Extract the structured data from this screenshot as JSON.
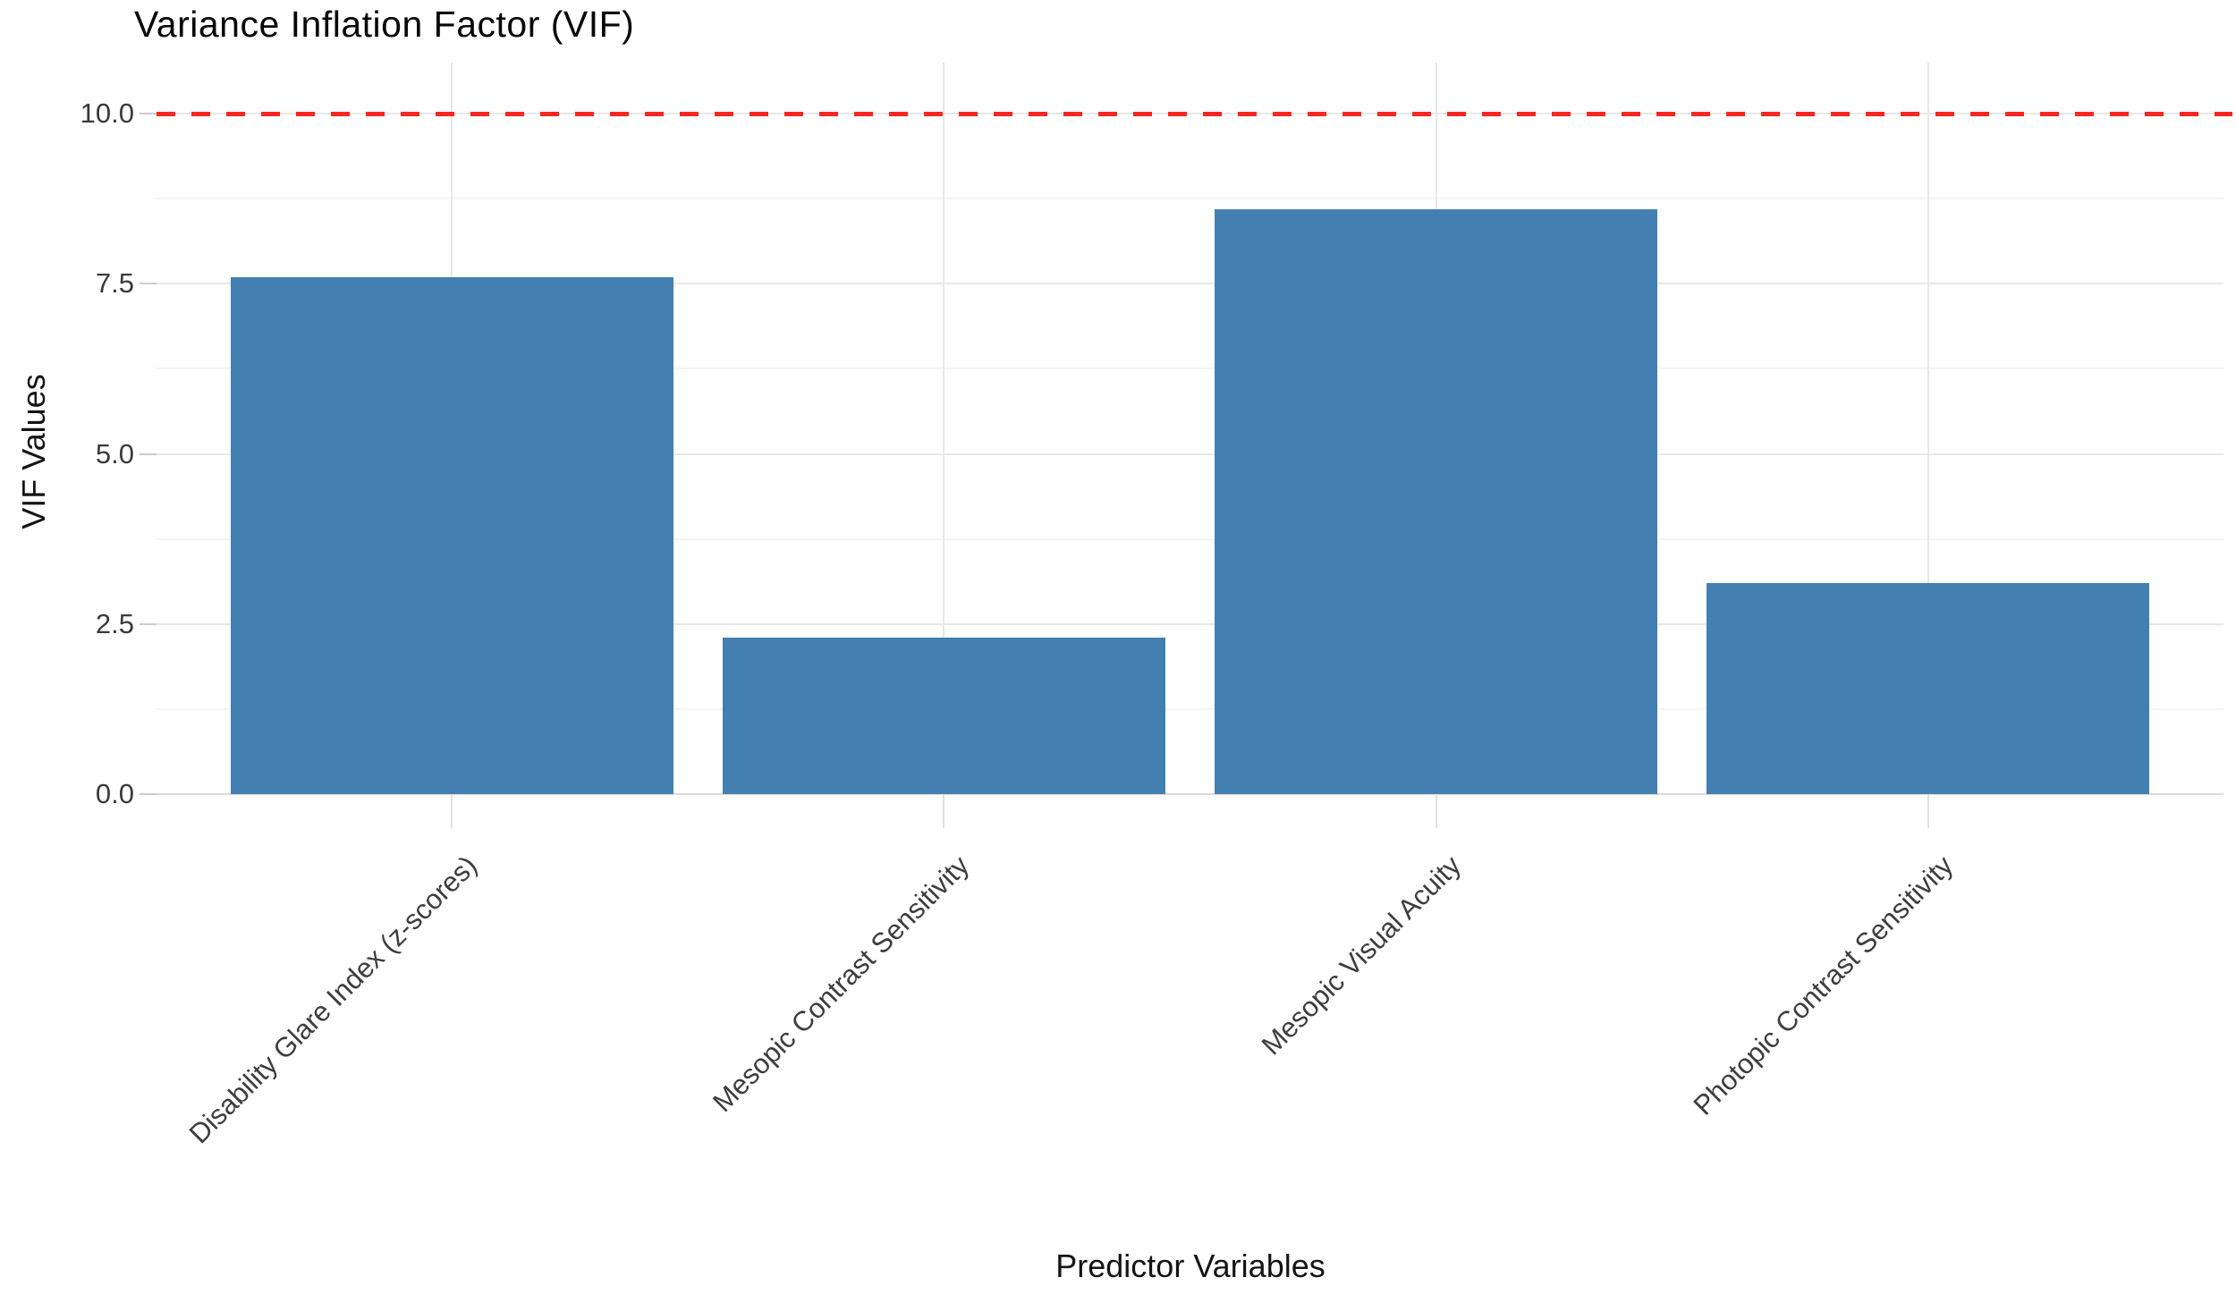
{
  "chart_data": {
    "type": "bar",
    "title": "Variance Inflation Factor (VIF)",
    "xlabel": "Predictor Variables",
    "ylabel": "VIF Values",
    "categories": [
      "Disability Glare Index (z-scores)",
      "Mesopic Contrast Sensitivity",
      "Mesopic Visual Acuity",
      "Photopic Contrast Sensitivity"
    ],
    "values": [
      7.6,
      2.3,
      8.6,
      3.1
    ],
    "ylim": [
      0,
      10.7
    ],
    "yticks": [
      0,
      2.5,
      5,
      7.5,
      10
    ],
    "ytick_labels": [
      "0.0",
      "2.5",
      "5.0",
      "7.5",
      "10.0"
    ],
    "minor_yticks": [
      1.25,
      3.75,
      6.25,
      8.75
    ],
    "grid": "on",
    "legend": "none",
    "threshold_line": {
      "value": 10.0,
      "style": "dashed",
      "color": "#f8271f"
    },
    "colors": {
      "bar_fill": "#4380b1",
      "major_grid": "#e8e8e8",
      "minor_grid": "#f4f4f4",
      "baseline_grid": "#dadada",
      "background": "#ffffff"
    }
  }
}
